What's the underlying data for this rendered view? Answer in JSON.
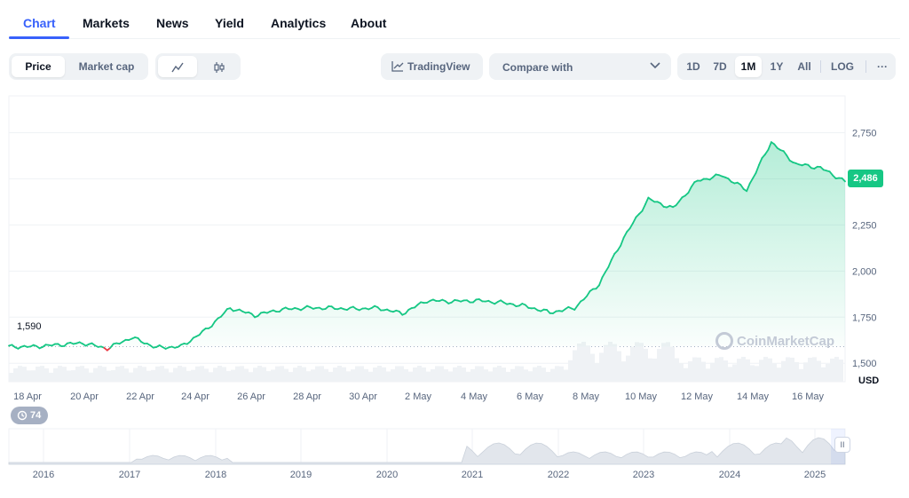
{
  "tabs": [
    {
      "label": "Chart",
      "active": true
    },
    {
      "label": "Markets"
    },
    {
      "label": "News"
    },
    {
      "label": "Yield"
    },
    {
      "label": "Analytics"
    },
    {
      "label": "About"
    }
  ],
  "toolbar": {
    "metric": {
      "options": [
        "Price",
        "Market cap"
      ],
      "selected": "Price"
    },
    "chart_style": {
      "options": [
        "line-chart-icon",
        "candlestick-icon"
      ],
      "selected": "line-chart-icon"
    },
    "tradingview_label": "TradingView",
    "compare_label": "Compare with",
    "ranges": [
      "1D",
      "7D",
      "1M",
      "1Y",
      "All"
    ],
    "selected_range": "1M",
    "log_label": "LOG",
    "more_label": "···"
  },
  "chart": {
    "current_price": "2,486",
    "start_price_label": "1,590",
    "currency": "USD",
    "watermark": "CoinMarketCap",
    "events_badge": "74",
    "accent_up": "#16c784",
    "accent_down": "#ea3943"
  },
  "chart_data": {
    "type": "area",
    "y_ticks": [
      "1,500",
      "1,750",
      "2,000",
      "2,250",
      "2,500",
      "2,750"
    ],
    "ylim": [
      1400,
      2950
    ],
    "x_ticks": [
      "18 Apr",
      "20 Apr",
      "22 Apr",
      "24 Apr",
      "26 Apr",
      "28 Apr",
      "30 Apr",
      "2 May",
      "4 May",
      "6 May",
      "8 May",
      "10 May",
      "12 May",
      "14 May",
      "16 May"
    ],
    "baseline": 1590,
    "series": [
      {
        "x": [
          "17 Apr",
          "18 Apr",
          "19 Apr",
          "20 Apr",
          "21 Apr",
          "22 Apr",
          "22 Apr 12h",
          "23 Apr",
          "23 Apr 12h",
          "24 Apr",
          "25 Apr",
          "26 Apr",
          "27 Apr",
          "28 Apr",
          "29 Apr",
          "30 Apr",
          "1 May",
          "2 May",
          "3 May",
          "4 May",
          "5 May",
          "6 May",
          "7 May",
          "8 May",
          "8 May 12h",
          "9 May",
          "9 May 12h",
          "10 May",
          "11 May",
          "12 May",
          "13 May",
          "14 May",
          "15 May",
          "16 May",
          "17 May"
        ],
        "values": [
          1590,
          1590,
          1600,
          1610,
          1580,
          1640,
          1585,
          1590,
          1680,
          1800,
          1760,
          1790,
          1800,
          1800,
          1795,
          1800,
          1770,
          1840,
          1835,
          1840,
          1830,
          1810,
          1775,
          1800,
          1930,
          2180,
          2390,
          2340,
          2490,
          2520,
          2440,
          2700,
          2580,
          2560,
          2486
        ]
      }
    ],
    "navigator_x_ticks": [
      "2016",
      "2017",
      "2018",
      "2019",
      "2020",
      "2021",
      "2022",
      "2023",
      "2024",
      "2025"
    ]
  }
}
